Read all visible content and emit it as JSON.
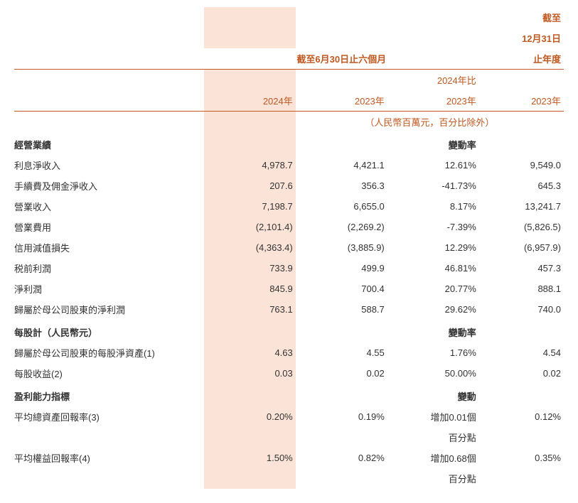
{
  "colors": {
    "accent": "#c05820",
    "highlight_bg": "#fbe4d7",
    "text": "#333333",
    "background": "#ffffff"
  },
  "fonts": {
    "body_size_pt": 10,
    "header_size_pt": 10,
    "section_weight": "bold"
  },
  "header": {
    "top_right_line1": "截至",
    "top_right_line2": "12月31日",
    "top_right_line3": "止年度",
    "mid_span": "截至6月30日止六個月",
    "col1_line1": "",
    "col1_line2": "2024年",
    "col2_line1": "",
    "col2_line2": "2023年",
    "col3_line1": "2024年比",
    "col3_line2": "2023年",
    "col4_line2": "2023年",
    "unit_note": "（人民幣百萬元，百分比除外）"
  },
  "sections": [
    {
      "title": "經營業績",
      "change_label": "變動率",
      "rows": [
        {
          "label": "利息淨收入",
          "c1": "4,978.7",
          "c2": "4,421.1",
          "c3": "12.61%",
          "c4": "9,549.0"
        },
        {
          "label": "手續費及佣金淨收入",
          "c1": "207.6",
          "c2": "356.3",
          "c3": "-41.73%",
          "c4": "645.3"
        },
        {
          "label": "營業收入",
          "c1": "7,198.7",
          "c2": "6,655.0",
          "c3": "8.17%",
          "c4": "13,241.7"
        },
        {
          "label": "營業費用",
          "c1": "(2,101.4)",
          "c2": "(2,269.2)",
          "c3": "-7.39%",
          "c4": "(5,826.5)"
        },
        {
          "label": "信用減值損失",
          "c1": "(4,363.4)",
          "c2": "(3,885.9)",
          "c3": "12.29%",
          "c4": "(6,957.9)"
        },
        {
          "label": "税前利潤",
          "c1": "733.9",
          "c2": "499.9",
          "c3": "46.81%",
          "c4": "457.3"
        },
        {
          "label": "淨利潤",
          "c1": "845.9",
          "c2": "700.4",
          "c3": "20.77%",
          "c4": "888.1"
        },
        {
          "label": "歸屬於母公司股東的淨利潤",
          "c1": "763.1",
          "c2": "588.7",
          "c3": "29.62%",
          "c4": "740.0"
        }
      ]
    },
    {
      "title": "每股計（人民幣元）",
      "change_label": "變動率",
      "rows": [
        {
          "label": "歸屬於母公司股東的每股淨資產(1)",
          "c1": "4.63",
          "c2": "4.55",
          "c3": "1.76%",
          "c4": "4.54"
        },
        {
          "label": "每股收益(2)",
          "c1": "0.03",
          "c2": "0.02",
          "c3": "50.00%",
          "c4": "0.02"
        }
      ]
    },
    {
      "title": "盈利能力指標",
      "change_label": "變動",
      "rows": [
        {
          "label": "平均總資產回報率(3)",
          "c1": "0.20%",
          "c2": "0.19%",
          "c3": "增加0.01個",
          "c3b": "百分點",
          "c4": "0.12%"
        },
        {
          "label": "平均權益回報率(4)",
          "c1": "1.50%",
          "c2": "0.82%",
          "c3": "增加0.68個",
          "c3b": "百分點",
          "c4": "0.35%"
        }
      ]
    }
  ]
}
